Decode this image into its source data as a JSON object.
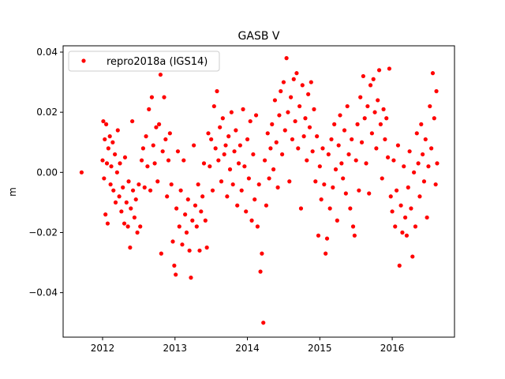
{
  "chart_data": {
    "type": "scatter",
    "title": "GASB V",
    "xlabel": "",
    "ylabel": "m",
    "xlim": [
      2011.455,
      2016.86
    ],
    "ylim": [
      -0.0548,
      0.0421
    ],
    "xticks": [
      2012,
      2013,
      2014,
      2015,
      2016
    ],
    "xtick_labels": [
      "2012",
      "2013",
      "2014",
      "2015",
      "2016"
    ],
    "yticks": [
      0.04,
      0.02,
      0.0,
      -0.02,
      -0.04
    ],
    "ytick_labels": [
      "0.04",
      "0.02",
      "0.00",
      "−0.02",
      "−0.04"
    ],
    "grid": false,
    "legend": {
      "placement": "top-left",
      "entries": [
        "repro2018a (IGS14)"
      ]
    },
    "series": [
      {
        "name": "repro2018a (IGS14)",
        "color": "#ff0000",
        "marker": "circle",
        "points": [
          [
            2011.71,
            0.0
          ],
          [
            2012.0,
            0.004
          ],
          [
            2012.01,
            0.017
          ],
          [
            2012.02,
            -0.002
          ],
          [
            2012.03,
            0.011
          ],
          [
            2012.04,
            -0.014
          ],
          [
            2012.05,
            0.016
          ],
          [
            2012.06,
            0.003
          ],
          [
            2012.07,
            -0.017
          ],
          [
            2012.08,
            0.008
          ],
          [
            2012.1,
            0.012
          ],
          [
            2012.11,
            -0.004
          ],
          [
            2012.12,
            0.002
          ],
          [
            2012.14,
            0.01
          ],
          [
            2012.15,
            -0.006
          ],
          [
            2012.17,
            0.006
          ],
          [
            2012.18,
            -0.01
          ],
          [
            2012.2,
            0.0
          ],
          [
            2012.21,
            0.014
          ],
          [
            2012.23,
            -0.008
          ],
          [
            2012.24,
            0.003
          ],
          [
            2012.26,
            -0.013
          ],
          [
            2012.28,
            -0.005
          ],
          [
            2012.3,
            -0.017
          ],
          [
            2012.31,
            0.005
          ],
          [
            2012.33,
            -0.01
          ],
          [
            2012.35,
            -0.018
          ],
          [
            2012.36,
            -0.003
          ],
          [
            2012.38,
            -0.025
          ],
          [
            2012.39,
            -0.012
          ],
          [
            2012.41,
            0.017
          ],
          [
            2012.42,
            -0.006
          ],
          [
            2012.44,
            -0.015
          ],
          [
            2012.46,
            -0.009
          ],
          [
            2012.48,
            -0.02
          ],
          [
            2012.5,
            -0.004
          ],
          [
            2012.52,
            -0.018
          ],
          [
            2012.54,
            0.004
          ],
          [
            2012.56,
            0.008
          ],
          [
            2012.58,
            -0.005
          ],
          [
            2012.6,
            0.012
          ],
          [
            2012.62,
            0.002
          ],
          [
            2012.64,
            0.021
          ],
          [
            2012.66,
            -0.006
          ],
          [
            2012.68,
            0.025
          ],
          [
            2012.7,
            0.009
          ],
          [
            2012.72,
            0.003
          ],
          [
            2012.74,
            0.015
          ],
          [
            2012.76,
            -0.003
          ],
          [
            2012.78,
            0.016
          ],
          [
            2012.8,
            0.0325
          ],
          [
            2012.81,
            -0.027
          ],
          [
            2012.83,
            0.007
          ],
          [
            2012.85,
            0.025
          ],
          [
            2012.87,
            0.011
          ],
          [
            2012.89,
            -0.008
          ],
          [
            2012.91,
            0.004
          ],
          [
            2012.93,
            0.013
          ],
          [
            2012.95,
            -0.004
          ],
          [
            2012.97,
            -0.023
          ],
          [
            2012.99,
            -0.031
          ],
          [
            2013.01,
            -0.034
          ],
          [
            2013.02,
            -0.012
          ],
          [
            2013.04,
            0.007
          ],
          [
            2013.06,
            -0.018
          ],
          [
            2013.08,
            -0.006
          ],
          [
            2013.1,
            -0.024
          ],
          [
            2013.12,
            0.004
          ],
          [
            2013.14,
            -0.014
          ],
          [
            2013.16,
            -0.02
          ],
          [
            2013.18,
            -0.009
          ],
          [
            2013.2,
            -0.026
          ],
          [
            2013.22,
            -0.035
          ],
          [
            2013.24,
            -0.016
          ],
          [
            2013.26,
            0.009
          ],
          [
            2013.28,
            -0.011
          ],
          [
            2013.3,
            -0.018
          ],
          [
            2013.32,
            -0.004
          ],
          [
            2013.34,
            -0.026
          ],
          [
            2013.36,
            -0.013
          ],
          [
            2013.38,
            -0.008
          ],
          [
            2013.4,
            0.003
          ],
          [
            2013.42,
            -0.016
          ],
          [
            2013.44,
            -0.025
          ],
          [
            2013.46,
            0.013
          ],
          [
            2013.48,
            0.002
          ],
          [
            2013.5,
            0.011
          ],
          [
            2013.52,
            -0.006
          ],
          [
            2013.54,
            0.022
          ],
          [
            2013.56,
            0.008
          ],
          [
            2013.58,
            0.027
          ],
          [
            2013.6,
            0.004
          ],
          [
            2013.62,
            0.015
          ],
          [
            2013.64,
            -0.003
          ],
          [
            2013.66,
            0.018
          ],
          [
            2013.68,
            0.006
          ],
          [
            2013.7,
            0.009
          ],
          [
            2013.72,
            -0.008
          ],
          [
            2013.74,
            0.012
          ],
          [
            2013.76,
            0.001
          ],
          [
            2013.78,
            0.02
          ],
          [
            2013.8,
            -0.004
          ],
          [
            2013.82,
            0.007
          ],
          [
            2013.84,
            0.014
          ],
          [
            2013.86,
            -0.011
          ],
          [
            2013.88,
            0.003
          ],
          [
            2013.9,
            0.009
          ],
          [
            2013.92,
            -0.006
          ],
          [
            2013.94,
            0.021
          ],
          [
            2013.96,
            0.002
          ],
          [
            2013.98,
            -0.013
          ],
          [
            2014.0,
            0.011
          ],
          [
            2014.02,
            -0.002
          ],
          [
            2014.04,
            0.017
          ],
          [
            2014.06,
            -0.016
          ],
          [
            2014.08,
            0.006
          ],
          [
            2014.1,
            -0.009
          ],
          [
            2014.12,
            0.019
          ],
          [
            2014.14,
            -0.018
          ],
          [
            2014.16,
            -0.004
          ],
          [
            2014.18,
            -0.033
          ],
          [
            2014.2,
            -0.027
          ],
          [
            2014.22,
            -0.05
          ],
          [
            2014.24,
            0.004
          ],
          [
            2014.26,
            -0.011
          ],
          [
            2014.28,
            0.013
          ],
          [
            2014.3,
            -0.002
          ],
          [
            2014.32,
            0.008
          ],
          [
            2014.34,
            0.016
          ],
          [
            2014.36,
            0.001
          ],
          [
            2014.38,
            0.024
          ],
          [
            2014.4,
            0.01
          ],
          [
            2014.42,
            -0.005
          ],
          [
            2014.44,
            0.019
          ],
          [
            2014.46,
            0.027
          ],
          [
            2014.48,
            0.006
          ],
          [
            2014.5,
            0.03
          ],
          [
            2014.52,
            0.014
          ],
          [
            2014.54,
            0.038
          ],
          [
            2014.56,
            0.02
          ],
          [
            2014.58,
            -0.003
          ],
          [
            2014.6,
            0.025
          ],
          [
            2014.62,
            0.011
          ],
          [
            2014.64,
            0.031
          ],
          [
            2014.66,
            0.017
          ],
          [
            2014.68,
            0.033
          ],
          [
            2014.7,
            0.008
          ],
          [
            2014.72,
            0.022
          ],
          [
            2014.74,
            -0.012
          ],
          [
            2014.76,
            0.029
          ],
          [
            2014.78,
            0.012
          ],
          [
            2014.8,
            0.018
          ],
          [
            2014.82,
            0.004
          ],
          [
            2014.84,
            0.026
          ],
          [
            2014.86,
            0.015
          ],
          [
            2014.88,
            0.03
          ],
          [
            2014.9,
            0.007
          ],
          [
            2014.92,
            0.021
          ],
          [
            2014.94,
            -0.003
          ],
          [
            2014.96,
            0.012
          ],
          [
            2014.98,
            -0.021
          ],
          [
            2015.0,
            0.002
          ],
          [
            2015.02,
            -0.009
          ],
          [
            2015.04,
            0.008
          ],
          [
            2015.06,
            -0.004
          ],
          [
            2015.08,
            -0.027
          ],
          [
            2015.1,
            -0.022
          ],
          [
            2015.12,
            0.006
          ],
          [
            2015.14,
            -0.012
          ],
          [
            2015.16,
            0.011
          ],
          [
            2015.18,
            -0.005
          ],
          [
            2015.2,
            0.016
          ],
          [
            2015.22,
            0.001
          ],
          [
            2015.24,
            -0.016
          ],
          [
            2015.26,
            0.009
          ],
          [
            2015.28,
            0.019
          ],
          [
            2015.3,
            0.003
          ],
          [
            2015.32,
            -0.002
          ],
          [
            2015.34,
            0.014
          ],
          [
            2015.36,
            -0.007
          ],
          [
            2015.38,
            0.022
          ],
          [
            2015.4,
            0.006
          ],
          [
            2015.42,
            -0.012
          ],
          [
            2015.44,
            0.011
          ],
          [
            2015.46,
            -0.018
          ],
          [
            2015.48,
            -0.021
          ],
          [
            2015.5,
            0.004
          ],
          [
            2015.52,
            0.016
          ],
          [
            2015.54,
            -0.006
          ],
          [
            2015.56,
            0.025
          ],
          [
            2015.58,
            0.01
          ],
          [
            2015.6,
            0.032
          ],
          [
            2015.62,
            0.018
          ],
          [
            2015.64,
            0.003
          ],
          [
            2015.66,
            0.022
          ],
          [
            2015.68,
            -0.007
          ],
          [
            2015.7,
            0.029
          ],
          [
            2015.72,
            0.013
          ],
          [
            2015.74,
            0.031
          ],
          [
            2015.76,
            0.02
          ],
          [
            2015.78,
            0.008
          ],
          [
            2015.8,
            0.024
          ],
          [
            2015.82,
            0.034
          ],
          [
            2015.84,
            0.016
          ],
          [
            2015.86,
            -0.002
          ],
          [
            2015.88,
            0.021
          ],
          [
            2015.9,
            0.011
          ],
          [
            2015.92,
            0.018
          ],
          [
            2015.94,
            0.005
          ],
          [
            2015.96,
            0.0345
          ],
          [
            2015.98,
            -0.008
          ],
          [
            2016.0,
            -0.013
          ],
          [
            2016.02,
            0.004
          ],
          [
            2016.04,
            -0.018
          ],
          [
            2016.06,
            -0.006
          ],
          [
            2016.08,
            0.009
          ],
          [
            2016.1,
            -0.031
          ],
          [
            2016.12,
            -0.011
          ],
          [
            2016.14,
            -0.02
          ],
          [
            2016.16,
            0.002
          ],
          [
            2016.18,
            -0.015
          ],
          [
            2016.2,
            -0.021
          ],
          [
            2016.22,
            -0.005
          ],
          [
            2016.24,
            0.007
          ],
          [
            2016.26,
            -0.012
          ],
          [
            2016.28,
            -0.028
          ],
          [
            2016.3,
            0.0
          ],
          [
            2016.32,
            -0.018
          ],
          [
            2016.34,
            0.013
          ],
          [
            2016.36,
            0.003
          ],
          [
            2016.38,
            -0.008
          ],
          [
            2016.4,
            0.016
          ],
          [
            2016.42,
            0.006
          ],
          [
            2016.44,
            -0.003
          ],
          [
            2016.46,
            0.011
          ],
          [
            2016.48,
            -0.015
          ],
          [
            2016.5,
            0.002
          ],
          [
            2016.52,
            0.022
          ],
          [
            2016.54,
            0.008
          ],
          [
            2016.56,
            0.033
          ],
          [
            2016.58,
            0.018
          ],
          [
            2016.6,
            -0.004
          ],
          [
            2016.61,
            0.027
          ],
          [
            2016.62,
            0.003
          ]
        ]
      }
    ]
  }
}
